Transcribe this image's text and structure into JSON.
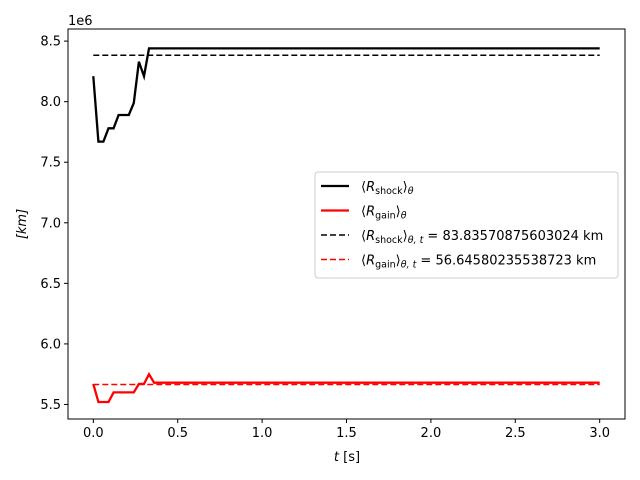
{
  "chart_data": {
    "type": "line",
    "multiplier_label": "1e6",
    "xlabel": "t [s]",
    "ylabel": "[km]",
    "xlim": [
      -0.15,
      3.15
    ],
    "ylim": [
      5.38,
      8.6
    ],
    "xticks": [
      0.0,
      0.5,
      1.0,
      1.5,
      2.0,
      2.5,
      3.0
    ],
    "xtick_labels": [
      "0.0",
      "0.5",
      "1.0",
      "1.5",
      "2.0",
      "2.5",
      "3.0"
    ],
    "yticks": [
      5.5,
      6.0,
      6.5,
      7.0,
      7.5,
      8.0,
      8.5
    ],
    "ytick_labels": [
      "5.5",
      "6.0",
      "6.5",
      "7.0",
      "7.5",
      "8.0",
      "8.5"
    ],
    "legend_position": "center-right",
    "series": [
      {
        "name": "⟨R_shock⟩_θ",
        "color": "#000000",
        "dash": "solid",
        "x": [
          0.0,
          0.03,
          0.06,
          0.09,
          0.12,
          0.15,
          0.18,
          0.21,
          0.24,
          0.27,
          0.3,
          0.33,
          0.36,
          3.0
        ],
        "y": [
          8.21,
          7.67,
          7.67,
          7.78,
          7.78,
          7.89,
          7.89,
          7.89,
          7.99,
          8.33,
          8.21,
          8.44,
          8.44,
          8.44
        ]
      },
      {
        "name": "⟨R_gain⟩_θ",
        "color": "#ff0000",
        "dash": "solid",
        "x": [
          0.0,
          0.03,
          0.06,
          0.09,
          0.12,
          0.15,
          0.18,
          0.21,
          0.24,
          0.27,
          0.3,
          0.33,
          0.36,
          3.0
        ],
        "y": [
          5.67,
          5.52,
          5.52,
          5.52,
          5.6,
          5.6,
          5.6,
          5.6,
          5.6,
          5.67,
          5.67,
          5.75,
          5.68,
          5.68
        ]
      },
      {
        "name": "⟨R_shock⟩_θ,t = 83.83570875603024 km",
        "color": "#000000",
        "dash": "dashed",
        "x": [
          0.0,
          3.0
        ],
        "y": [
          8.383,
          8.383
        ]
      },
      {
        "name": "⟨R_gain⟩_θ,t = 56.64580235538723 km",
        "color": "#ff0000",
        "dash": "dashed",
        "x": [
          0.0,
          3.0
        ],
        "y": [
          5.665,
          5.665
        ]
      }
    ],
    "legend": [
      {
        "main": "⟨R",
        "sub": "shock",
        "close": "⟩",
        "sub2": "θ",
        "suffix": ""
      },
      {
        "main": "⟨R",
        "sub": "gain",
        "close": "⟩",
        "sub2": "θ",
        "suffix": ""
      },
      {
        "main": "⟨R",
        "sub": "shock",
        "close": "⟩",
        "sub2": "θ, t",
        "suffix": " = 83.83570875603024 km"
      },
      {
        "main": "⟨R",
        "sub": "gain",
        "close": "⟩",
        "sub2": "θ, t",
        "suffix": " = 56.64580235538723 km"
      }
    ]
  }
}
